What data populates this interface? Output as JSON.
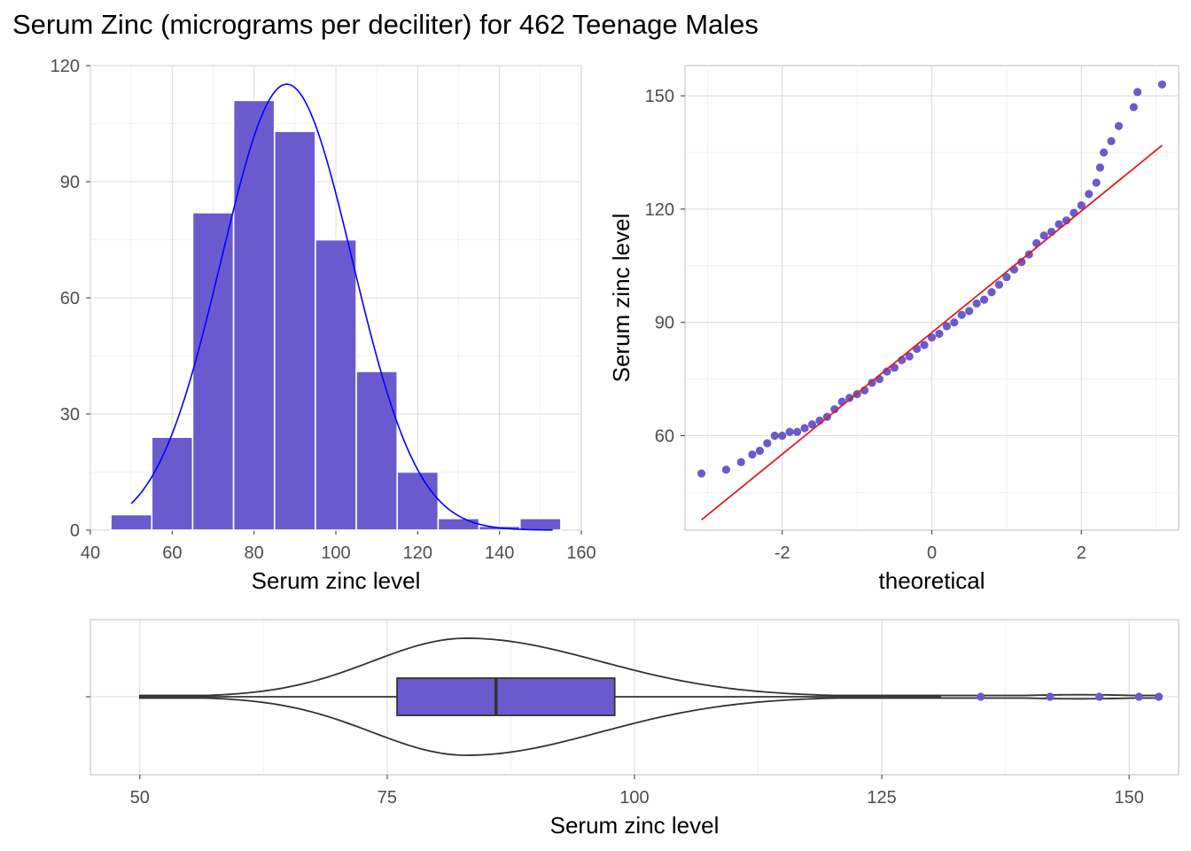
{
  "title": "Serum Zinc (micrograms per deciliter) for 462 Teenage Males",
  "colors": {
    "fill": "#6a5acd",
    "density_line": "#0000ff",
    "qq_line": "#e31a1c",
    "outline": "#333333",
    "grid": "#dcdcdc"
  },
  "chart_data": [
    {
      "type": "bar",
      "subtype": "histogram",
      "xlabel": "Serum zinc level",
      "ylabel": "",
      "xlim": [
        40,
        160
      ],
      "ylim": [
        0,
        120
      ],
      "x_ticks": [
        40,
        60,
        80,
        100,
        120,
        140,
        160
      ],
      "y_ticks": [
        0,
        30,
        60,
        90,
        120
      ],
      "bin_width": 10,
      "bins": [
        {
          "x0": 45,
          "x1": 55,
          "count": 4
        },
        {
          "x0": 55,
          "x1": 65,
          "count": 24
        },
        {
          "x0": 65,
          "x1": 75,
          "count": 82
        },
        {
          "x0": 75,
          "x1": 85,
          "count": 111
        },
        {
          "x0": 85,
          "x1": 95,
          "count": 103
        },
        {
          "x0": 95,
          "x1": 105,
          "count": 75
        },
        {
          "x0": 105,
          "x1": 115,
          "count": 41
        },
        {
          "x0": 115,
          "x1": 125,
          "count": 15
        },
        {
          "x0": 125,
          "x1": 135,
          "count": 3
        },
        {
          "x0": 135,
          "x1": 145,
          "count": 1
        },
        {
          "x0": 145,
          "x1": 155,
          "count": 3
        }
      ],
      "normal_curve": {
        "mean": 88,
        "sd": 16,
        "n": 462,
        "x_range": [
          50,
          153
        ]
      },
      "grid": true
    },
    {
      "type": "scatter",
      "subtype": "normal-qq",
      "xlabel": "theoretical",
      "ylabel": "Serum zinc level",
      "xlim": [
        -3.3,
        3.3
      ],
      "ylim": [
        35,
        158
      ],
      "x_ticks": [
        -2,
        0,
        2
      ],
      "y_ticks": [
        60,
        90,
        120,
        150
      ],
      "points": [
        [
          -3.08,
          50
        ],
        [
          -2.75,
          51
        ],
        [
          -2.55,
          53
        ],
        [
          -2.4,
          55
        ],
        [
          -2.3,
          56
        ],
        [
          -2.2,
          58
        ],
        [
          -2.1,
          60
        ],
        [
          -2.0,
          60
        ],
        [
          -1.9,
          61
        ],
        [
          -1.8,
          61
        ],
        [
          -1.7,
          62
        ],
        [
          -1.6,
          63
        ],
        [
          -1.5,
          64
        ],
        [
          -1.4,
          65
        ],
        [
          -1.3,
          67
        ],
        [
          -1.2,
          69
        ],
        [
          -1.1,
          70
        ],
        [
          -1.0,
          71
        ],
        [
          -0.9,
          72
        ],
        [
          -0.8,
          74
        ],
        [
          -0.7,
          75
        ],
        [
          -0.6,
          77
        ],
        [
          -0.5,
          78
        ],
        [
          -0.4,
          80
        ],
        [
          -0.3,
          81
        ],
        [
          -0.2,
          83
        ],
        [
          -0.1,
          84
        ],
        [
          0.0,
          86
        ],
        [
          0.1,
          87
        ],
        [
          0.2,
          89
        ],
        [
          0.3,
          90
        ],
        [
          0.4,
          92
        ],
        [
          0.5,
          93
        ],
        [
          0.6,
          95
        ],
        [
          0.7,
          96
        ],
        [
          0.8,
          98
        ],
        [
          0.9,
          100
        ],
        [
          1.0,
          102
        ],
        [
          1.1,
          104
        ],
        [
          1.2,
          106
        ],
        [
          1.3,
          108
        ],
        [
          1.4,
          111
        ],
        [
          1.5,
          113
        ],
        [
          1.6,
          114
        ],
        [
          1.7,
          116
        ],
        [
          1.8,
          117
        ],
        [
          1.9,
          119
        ],
        [
          2.0,
          121
        ],
        [
          2.1,
          124
        ],
        [
          2.2,
          127
        ],
        [
          2.25,
          131
        ],
        [
          2.3,
          135
        ],
        [
          2.4,
          138
        ],
        [
          2.5,
          142
        ],
        [
          2.7,
          147
        ],
        [
          2.75,
          151
        ],
        [
          3.08,
          153
        ]
      ],
      "reference_line": {
        "intercept": 87.3,
        "slope": 16.1,
        "x_range": [
          -3.08,
          3.08
        ]
      },
      "grid": true
    },
    {
      "type": "violin-boxplot",
      "xlabel": "Serum zinc level",
      "xlim": [
        45,
        155
      ],
      "x_ticks": [
        50,
        75,
        100,
        125,
        150
      ],
      "box": {
        "min": 50,
        "q1": 76,
        "median": 86,
        "q3": 98,
        "max": 131
      },
      "outliers": [
        135,
        142,
        147,
        151,
        153
      ],
      "violin_range": [
        50,
        153
      ],
      "grid": true
    }
  ]
}
